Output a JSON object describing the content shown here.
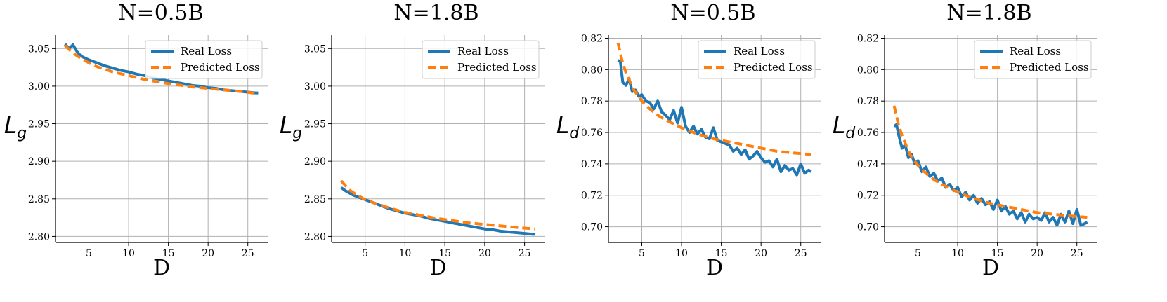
{
  "chart_data": [
    {
      "type": "line",
      "title": "N=0.5B",
      "xlabel": "D",
      "ylabel": {
        "main": "L",
        "sub": "g"
      },
      "xlim": [
        0.8,
        27.5
      ],
      "ylim": [
        2.792,
        3.068
      ],
      "xticks": [
        5,
        10,
        15,
        20,
        25
      ],
      "yticks": [
        2.8,
        2.85,
        2.9,
        2.95,
        3.0,
        3.05
      ],
      "ytick_labels": [
        "2.80",
        "2.85",
        "2.90",
        "2.95",
        "3.00",
        "3.05"
      ],
      "grid": true,
      "legend_position": "top-right",
      "series": [
        {
          "name": "Real Loss",
          "color": "#1f77b4",
          "style": "solid",
          "x": [
            2,
            2.5,
            3,
            3.5,
            4,
            5,
            6,
            7,
            8,
            9,
            10,
            11,
            12,
            13,
            14,
            15,
            16,
            17,
            18,
            19,
            20,
            21,
            22,
            23,
            24,
            25,
            26,
            26.3
          ],
          "y": [
            3.056,
            3.05,
            3.055,
            3.046,
            3.04,
            3.035,
            3.031,
            3.027,
            3.024,
            3.021,
            3.019,
            3.016,
            3.014,
            3.011,
            3.009,
            3.007,
            3.005,
            3.003,
            3.001,
            3.0,
            2.998,
            2.997,
            2.995,
            2.994,
            2.993,
            2.992,
            2.991,
            2.991
          ]
        },
        {
          "name": "Predicted Loss",
          "color": "#ff7f0e",
          "style": "dashed",
          "x": [
            2,
            3,
            4,
            5,
            6,
            8,
            10,
            12,
            14,
            16,
            18,
            20,
            22,
            24,
            26.3
          ],
          "y": [
            3.054,
            3.044,
            3.037,
            3.031,
            3.026,
            3.019,
            3.014,
            3.009,
            3.005,
            3.002,
            2.999,
            2.997,
            2.995,
            2.993,
            2.99
          ]
        }
      ]
    },
    {
      "type": "line",
      "title": "N=1.8B",
      "xlabel": "D",
      "ylabel": {
        "main": "L",
        "sub": "g"
      },
      "xlim": [
        0.8,
        27.5
      ],
      "ylim": [
        2.792,
        3.068
      ],
      "xticks": [
        5,
        10,
        15,
        20,
        25
      ],
      "yticks": [
        2.8,
        2.85,
        2.9,
        2.95,
        3.0,
        3.05
      ],
      "ytick_labels": [
        "2.80",
        "2.85",
        "2.90",
        "2.95",
        "3.00",
        "3.05"
      ],
      "grid": true,
      "legend_position": "top-right",
      "series": [
        {
          "name": "Real Loss",
          "color": "#1f77b4",
          "style": "solid",
          "x": [
            2,
            2.5,
            3,
            3.5,
            4,
            5,
            6,
            7,
            8,
            9,
            10,
            11,
            12,
            13,
            14,
            15,
            16,
            17,
            18,
            19,
            20,
            21,
            22,
            23,
            24,
            25,
            26,
            26.3
          ],
          "y": [
            2.865,
            2.861,
            2.858,
            2.855,
            2.853,
            2.849,
            2.845,
            2.841,
            2.837,
            2.834,
            2.831,
            2.829,
            2.827,
            2.824,
            2.822,
            2.82,
            2.818,
            2.816,
            2.814,
            2.812,
            2.81,
            2.809,
            2.807,
            2.806,
            2.805,
            2.804,
            2.803,
            2.803
          ]
        },
        {
          "name": "Predicted Loss",
          "color": "#ff7f0e",
          "style": "dashed",
          "x": [
            2,
            3,
            4,
            5,
            6,
            8,
            10,
            12,
            14,
            16,
            18,
            20,
            22,
            24,
            26.3
          ],
          "y": [
            2.874,
            2.862,
            2.855,
            2.849,
            2.845,
            2.838,
            2.832,
            2.828,
            2.824,
            2.821,
            2.818,
            2.816,
            2.814,
            2.812,
            2.81
          ]
        }
      ]
    },
    {
      "type": "line",
      "title": "N=0.5B",
      "xlabel": "D",
      "ylabel": {
        "main": "L",
        "sub": "d"
      },
      "xlim": [
        0.8,
        27.5
      ],
      "ylim": [
        0.69,
        0.822
      ],
      "xticks": [
        5,
        10,
        15,
        20,
        25
      ],
      "yticks": [
        0.7,
        0.72,
        0.74,
        0.76,
        0.78,
        0.8,
        0.82
      ],
      "ytick_labels": [
        "0.70",
        "0.72",
        "0.74",
        "0.76",
        "0.78",
        "0.80",
        "0.82"
      ],
      "grid": true,
      "legend_position": "top-right",
      "series": [
        {
          "name": "Real Loss",
          "color": "#1f77b4",
          "style": "solid",
          "x": [
            2,
            2.3,
            2.6,
            3,
            3.4,
            3.8,
            4.2,
            4.6,
            5,
            5.5,
            6,
            6.5,
            7,
            7.5,
            8,
            8.5,
            9,
            9.5,
            10,
            10.5,
            11,
            11.5,
            12,
            12.5,
            13,
            13.5,
            14,
            14.5,
            15,
            15.5,
            16,
            16.5,
            17,
            17.5,
            18,
            18.5,
            19,
            19.5,
            20,
            20.5,
            21,
            21.5,
            22,
            22.5,
            23,
            23.5,
            24,
            24.5,
            25,
            25.5,
            26,
            26.3
          ],
          "y": [
            0.806,
            0.805,
            0.792,
            0.79,
            0.794,
            0.786,
            0.787,
            0.783,
            0.784,
            0.78,
            0.779,
            0.775,
            0.78,
            0.773,
            0.771,
            0.768,
            0.774,
            0.766,
            0.776,
            0.764,
            0.76,
            0.764,
            0.759,
            0.762,
            0.757,
            0.756,
            0.763,
            0.755,
            0.754,
            0.753,
            0.752,
            0.748,
            0.75,
            0.746,
            0.749,
            0.743,
            0.745,
            0.748,
            0.744,
            0.741,
            0.742,
            0.738,
            0.743,
            0.735,
            0.739,
            0.736,
            0.737,
            0.733,
            0.74,
            0.734,
            0.736,
            0.735
          ]
        },
        {
          "name": "Predicted Loss",
          "color": "#ff7f0e",
          "style": "dashed",
          "x": [
            2,
            2.5,
            3,
            4,
            5,
            6,
            7,
            8,
            10,
            12,
            14,
            16,
            18,
            20,
            22,
            24,
            26.3
          ],
          "y": [
            0.817,
            0.806,
            0.798,
            0.787,
            0.78,
            0.775,
            0.771,
            0.768,
            0.763,
            0.759,
            0.756,
            0.754,
            0.752,
            0.75,
            0.748,
            0.747,
            0.746
          ]
        }
      ]
    },
    {
      "type": "line",
      "title": "N=1.8B",
      "xlabel": "D",
      "ylabel": {
        "main": "L",
        "sub": "d"
      },
      "xlim": [
        0.8,
        27.5
      ],
      "ylim": [
        0.69,
        0.822
      ],
      "xticks": [
        5,
        10,
        15,
        20,
        25
      ],
      "yticks": [
        0.7,
        0.72,
        0.74,
        0.76,
        0.78,
        0.8,
        0.82
      ],
      "ytick_labels": [
        "0.70",
        "0.72",
        "0.74",
        "0.76",
        "0.78",
        "0.80",
        "0.82"
      ],
      "grid": true,
      "legend_position": "top-right",
      "series": [
        {
          "name": "Real Loss",
          "color": "#1f77b4",
          "style": "solid",
          "x": [
            2,
            2.3,
            2.6,
            3,
            3.4,
            3.8,
            4.2,
            4.6,
            5,
            5.5,
            6,
            6.5,
            7,
            7.5,
            8,
            8.5,
            9,
            9.5,
            10,
            10.5,
            11,
            11.5,
            12,
            12.5,
            13,
            13.5,
            14,
            14.5,
            15,
            15.5,
            16,
            16.5,
            17,
            17.5,
            18,
            18.5,
            19,
            19.5,
            20,
            20.5,
            21,
            21.5,
            22,
            22.5,
            23,
            23.5,
            24,
            24.5,
            25,
            25.5,
            26,
            26.3
          ],
          "y": [
            0.764,
            0.765,
            0.758,
            0.75,
            0.752,
            0.744,
            0.746,
            0.74,
            0.742,
            0.735,
            0.738,
            0.732,
            0.734,
            0.729,
            0.731,
            0.725,
            0.727,
            0.723,
            0.725,
            0.719,
            0.722,
            0.717,
            0.72,
            0.715,
            0.718,
            0.714,
            0.716,
            0.711,
            0.717,
            0.71,
            0.713,
            0.708,
            0.71,
            0.705,
            0.709,
            0.703,
            0.708,
            0.705,
            0.706,
            0.704,
            0.709,
            0.703,
            0.706,
            0.701,
            0.708,
            0.703,
            0.71,
            0.702,
            0.711,
            0.701,
            0.702,
            0.703
          ]
        },
        {
          "name": "Predicted Loss",
          "color": "#ff7f0e",
          "style": "dashed",
          "x": [
            2,
            2.5,
            3,
            4,
            5,
            6,
            7,
            8,
            10,
            12,
            14,
            16,
            18,
            20,
            22,
            24,
            26.3
          ],
          "y": [
            0.777,
            0.766,
            0.758,
            0.746,
            0.739,
            0.734,
            0.73,
            0.727,
            0.722,
            0.718,
            0.715,
            0.713,
            0.711,
            0.709,
            0.708,
            0.707,
            0.706
          ]
        }
      ]
    }
  ]
}
